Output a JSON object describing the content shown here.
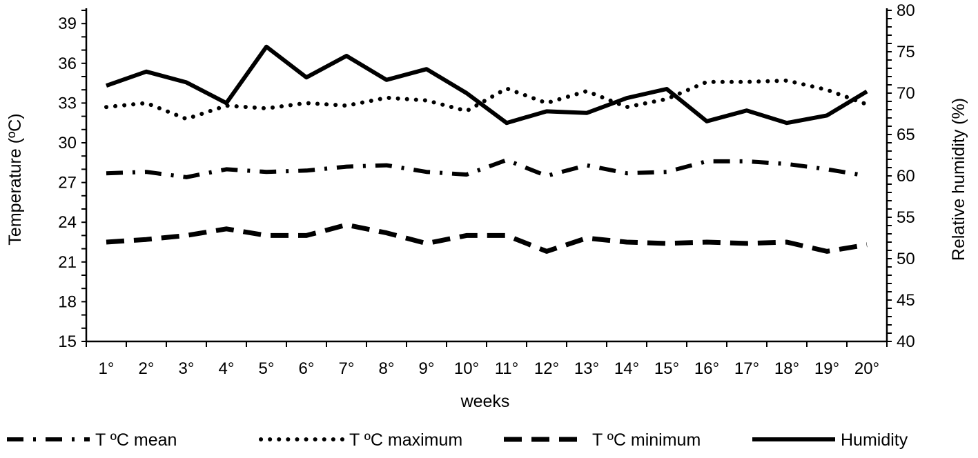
{
  "chart_data": {
    "type": "line",
    "xlabel": "weeks",
    "ylabel_left": "Temperature (ºC)",
    "ylabel_right": "Relative humidity (%)",
    "categories": [
      "1°",
      "2°",
      "3°",
      "4°",
      "5°",
      "6°",
      "7°",
      "8°",
      "9°",
      "10°",
      "11°",
      "12°",
      "13°",
      "14°",
      "15°",
      "16°",
      "17°",
      "18°",
      "19°",
      "20°"
    ],
    "yticks_left": [
      "15",
      "18",
      "21",
      "24",
      "27",
      "30",
      "33",
      "36",
      "39"
    ],
    "yticks_right": [
      "40",
      "45",
      "50",
      "55",
      "60",
      "65",
      "70",
      "75",
      "80"
    ],
    "ylim_left": [
      15,
      40
    ],
    "ylim_right": [
      40,
      80
    ],
    "grid": false,
    "legend_position": "bottom",
    "series": [
      {
        "name": "T ºC mean",
        "axis": "left",
        "style": "dash-dot",
        "color": "#000000",
        "values": [
          27.7,
          27.8,
          27.4,
          28.0,
          27.8,
          27.9,
          28.2,
          28.3,
          27.8,
          27.6,
          28.7,
          27.5,
          28.3,
          27.7,
          27.8,
          28.6,
          28.6,
          28.4,
          28.0,
          27.5
        ]
      },
      {
        "name": "T ºC maximum",
        "axis": "left",
        "style": "dotted",
        "color": "#000000",
        "values": [
          32.7,
          33.0,
          31.8,
          32.8,
          32.6,
          33.0,
          32.8,
          33.4,
          33.2,
          32.4,
          34.1,
          33.0,
          33.9,
          32.7,
          33.3,
          34.6,
          34.6,
          34.7,
          34.0,
          32.9
        ]
      },
      {
        "name": "T ºC minimum",
        "axis": "left",
        "style": "dashed",
        "color": "#000000",
        "values": [
          22.5,
          22.7,
          23.0,
          23.5,
          23.0,
          23.0,
          23.8,
          23.2,
          22.4,
          23.0,
          23.0,
          21.8,
          22.8,
          22.5,
          22.4,
          22.5,
          22.4,
          22.5,
          21.8,
          22.3
        ]
      },
      {
        "name": "Humidity",
        "axis": "right",
        "style": "solid",
        "color": "#000000",
        "values": [
          70.9,
          72.6,
          71.3,
          68.8,
          75.6,
          71.9,
          74.5,
          71.6,
          72.9,
          70.0,
          66.4,
          67.8,
          67.6,
          69.4,
          70.5,
          66.6,
          67.9,
          66.4,
          67.3,
          70.2
        ]
      }
    ]
  }
}
